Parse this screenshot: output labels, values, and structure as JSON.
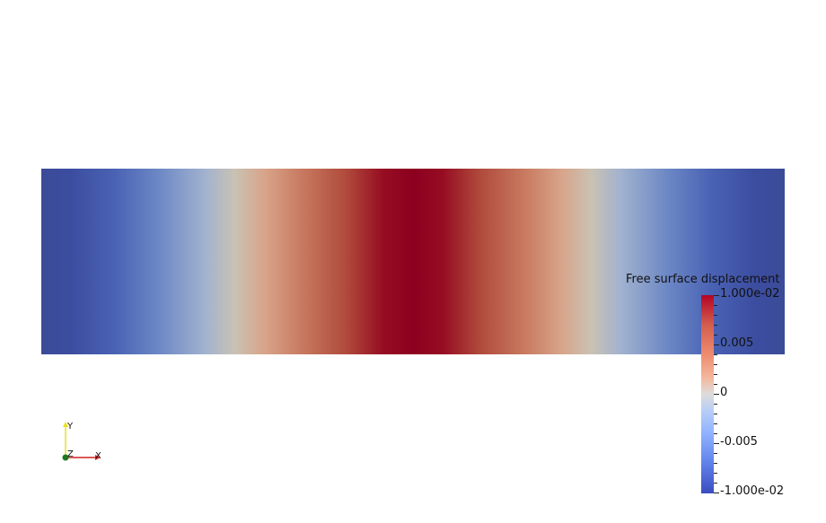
{
  "legend": {
    "title": "Free surface displacement",
    "labels": [
      "1.000e-02",
      "0.005",
      "0",
      "-0.005",
      "-1.000e-02"
    ],
    "max": 0.01,
    "min": -0.01
  },
  "orientation_axes": {
    "y_label": "Y",
    "z_label": "Z",
    "x_label": "X"
  },
  "colors": {
    "colormap": "cool-to-warm",
    "high": "#b40426",
    "mid": "#dddcdc",
    "low": "#3b4cc0",
    "x_axis": "#d42020",
    "y_axis": "#e8e020",
    "z_axis": "#1e7a1e"
  }
}
